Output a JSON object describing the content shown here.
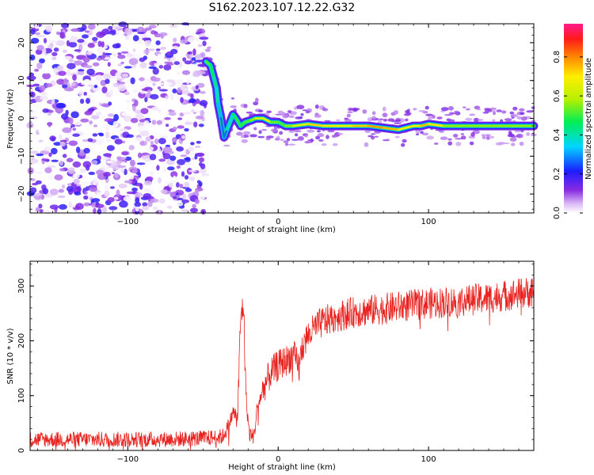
{
  "title": "S162.2023.107.12.22.G32",
  "colors": {
    "snr_line": "#e8231f",
    "axis": "#000000",
    "background": "#ffffff"
  },
  "chart_data": [
    {
      "type": "heatmap",
      "name": "spectrogram",
      "xlabel": "Height of straight line (km)",
      "ylabel": "Frequency (Hz)",
      "xlim": [
        -165,
        170
      ],
      "ylim": [
        -25,
        25
      ],
      "xticks": [
        -100,
        0,
        100
      ],
      "yticks": [
        -20,
        -10,
        0,
        10,
        20
      ],
      "colormap": "rainbow (white at 0, purple, blue, cyan, green, yellow, orange, red, magenta at 1)",
      "noise_region_x": [
        -165,
        -48
      ],
      "signal_track": {
        "x": [
          -48,
          -45,
          -43,
          -41,
          -40,
          -38,
          -36,
          -34,
          -30,
          -28,
          -25,
          -22,
          -18,
          -15,
          -10,
          -5,
          0,
          5,
          10,
          20,
          30,
          40,
          50,
          60,
          70,
          80,
          85,
          90,
          95,
          100,
          110,
          120,
          130,
          140,
          150,
          160,
          170
        ],
        "y": [
          15,
          14,
          11,
          8,
          4,
          0,
          -5,
          -3,
          1,
          0,
          -2,
          -1,
          -0.5,
          0,
          0,
          -1,
          -1,
          -2,
          -2,
          -1.5,
          -2,
          -2,
          -2,
          -2,
          -2.5,
          -3,
          -2.5,
          -2,
          -2,
          -1.5,
          -2,
          -2,
          -2,
          -2,
          -2,
          -2,
          -2
        ],
        "amplitude": [
          0.55,
          0.5,
          0.45,
          0.4,
          0.35,
          0.3,
          0.25,
          0.3,
          0.45,
          0.5,
          0.5,
          0.5,
          0.55,
          0.6,
          0.75,
          0.6,
          0.5,
          0.55,
          0.6,
          0.75,
          0.75,
          0.7,
          0.72,
          0.8,
          0.8,
          0.75,
          0.7,
          0.72,
          0.7,
          0.85,
          0.6,
          0.55,
          0.6,
          0.55,
          0.6,
          0.55,
          0.6
        ]
      },
      "colorbar": {
        "label": "Normalized spectral amplitude",
        "ticks": [
          0.0,
          0.2,
          0.4,
          0.6,
          0.8
        ],
        "range": [
          0,
          0.97
        ]
      }
    },
    {
      "type": "line",
      "name": "snr",
      "xlabel": "Height of straight line (km)",
      "ylabel": "SNR (10 * v/v)",
      "xlim": [
        -165,
        170
      ],
      "ylim": [
        0,
        345
      ],
      "xticks": [
        -100,
        0,
        100
      ],
      "yticks": [
        0,
        100,
        200,
        300
      ],
      "series": [
        {
          "x": [
            -165,
            -140,
            -110,
            -80,
            -50,
            -37,
            -33,
            -30,
            -27,
            -25,
            -23,
            -22,
            -21,
            -19,
            -16,
            -14,
            -12,
            -10,
            -8,
            -5,
            -2,
            0,
            3,
            6,
            10,
            14,
            16,
            20,
            25,
            30,
            40,
            50,
            60,
            70,
            80,
            90,
            100,
            110,
            120,
            130,
            140,
            150,
            160,
            170
          ],
          "values": [
            20,
            20,
            20,
            20,
            22,
            25,
            45,
            70,
            60,
            240,
            270,
            150,
            80,
            30,
            25,
            80,
            95,
            110,
            125,
            140,
            150,
            155,
            160,
            165,
            175,
            150,
            190,
            210,
            225,
            235,
            245,
            252,
            255,
            258,
            262,
            265,
            268,
            270,
            272,
            275,
            278,
            282,
            286,
            290
          ],
          "noise_amplitude": 18
        }
      ]
    }
  ]
}
